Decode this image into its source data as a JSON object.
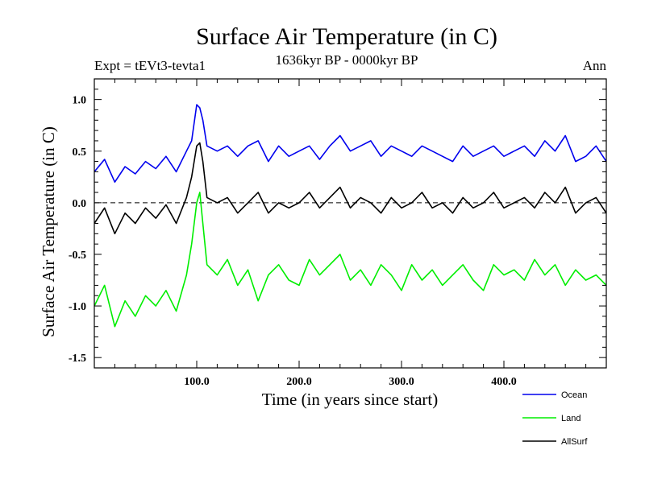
{
  "chart_data": {
    "type": "line",
    "title": "Surface Air Temperature (in C)",
    "subtitle_left": "Expt = tEVt3-tevta1",
    "subtitle_center": "1636kyr BP - 0000kyr BP",
    "subtitle_right": "Ann",
    "xlabel": "Time (in years since start)",
    "ylabel": "Surface Air Temperature (in C)",
    "xlim": [
      0,
      500
    ],
    "ylim": [
      -1.6,
      1.2
    ],
    "xticks": [
      100,
      200,
      300,
      400
    ],
    "xtick_labels": [
      "100.0",
      "200.0",
      "300.0",
      "400.0"
    ],
    "yticks": [
      1.0,
      0.5,
      0.0,
      -0.5,
      -1.0,
      -1.5
    ],
    "ytick_labels": [
      "1.0",
      "0.5",
      "0.0",
      "-0.5",
      "-1.0",
      "-1.5"
    ],
    "reference_line": 0.0,
    "legend_position": "bottom-right",
    "series": [
      {
        "name": "Ocean",
        "color": "#0000ee",
        "x": [
          0,
          10,
          20,
          30,
          40,
          50,
          60,
          70,
          80,
          90,
          95,
          100,
          103,
          106,
          110,
          120,
          130,
          140,
          150,
          160,
          170,
          180,
          190,
          200,
          210,
          220,
          230,
          240,
          250,
          260,
          270,
          280,
          290,
          300,
          310,
          320,
          330,
          340,
          350,
          360,
          370,
          380,
          390,
          400,
          410,
          420,
          430,
          440,
          450,
          460,
          470,
          480,
          490,
          500
        ],
        "values": [
          0.3,
          0.42,
          0.2,
          0.35,
          0.28,
          0.4,
          0.33,
          0.45,
          0.3,
          0.5,
          0.6,
          0.95,
          0.92,
          0.8,
          0.55,
          0.5,
          0.55,
          0.45,
          0.55,
          0.6,
          0.4,
          0.55,
          0.45,
          0.5,
          0.55,
          0.42,
          0.55,
          0.65,
          0.5,
          0.55,
          0.6,
          0.45,
          0.55,
          0.5,
          0.45,
          0.55,
          0.5,
          0.45,
          0.4,
          0.55,
          0.45,
          0.5,
          0.55,
          0.45,
          0.5,
          0.55,
          0.45,
          0.6,
          0.5,
          0.65,
          0.4,
          0.45,
          0.55,
          0.4
        ]
      },
      {
        "name": "Land",
        "color": "#00ee00",
        "x": [
          0,
          10,
          20,
          30,
          40,
          50,
          60,
          70,
          80,
          90,
          95,
          100,
          103,
          106,
          110,
          120,
          130,
          140,
          150,
          160,
          170,
          180,
          190,
          200,
          210,
          220,
          230,
          240,
          250,
          260,
          270,
          280,
          290,
          300,
          310,
          320,
          330,
          340,
          350,
          360,
          370,
          380,
          390,
          400,
          410,
          420,
          430,
          440,
          450,
          460,
          470,
          480,
          490,
          500
        ],
        "values": [
          -1.0,
          -0.8,
          -1.2,
          -0.95,
          -1.1,
          -0.9,
          -1.0,
          -0.85,
          -1.05,
          -0.7,
          -0.4,
          0.0,
          0.1,
          -0.2,
          -0.6,
          -0.7,
          -0.55,
          -0.8,
          -0.65,
          -0.95,
          -0.7,
          -0.6,
          -0.75,
          -0.8,
          -0.55,
          -0.7,
          -0.6,
          -0.5,
          -0.75,
          -0.65,
          -0.8,
          -0.6,
          -0.7,
          -0.85,
          -0.6,
          -0.75,
          -0.65,
          -0.8,
          -0.7,
          -0.6,
          -0.75,
          -0.85,
          -0.6,
          -0.7,
          -0.65,
          -0.75,
          -0.55,
          -0.7,
          -0.6,
          -0.8,
          -0.65,
          -0.75,
          -0.7,
          -0.8
        ]
      },
      {
        "name": "AllSurf",
        "color": "#000000",
        "x": [
          0,
          10,
          20,
          30,
          40,
          50,
          60,
          70,
          80,
          90,
          95,
          100,
          103,
          106,
          110,
          120,
          130,
          140,
          150,
          160,
          170,
          180,
          190,
          200,
          210,
          220,
          230,
          240,
          250,
          260,
          270,
          280,
          290,
          300,
          310,
          320,
          330,
          340,
          350,
          360,
          370,
          380,
          390,
          400,
          410,
          420,
          430,
          440,
          450,
          460,
          470,
          480,
          490,
          500
        ],
        "values": [
          -0.2,
          -0.05,
          -0.3,
          -0.1,
          -0.2,
          -0.05,
          -0.15,
          -0.02,
          -0.2,
          0.05,
          0.25,
          0.55,
          0.58,
          0.4,
          0.05,
          0.0,
          0.05,
          -0.1,
          0.0,
          0.1,
          -0.1,
          0.0,
          -0.05,
          0.0,
          0.1,
          -0.05,
          0.05,
          0.15,
          -0.05,
          0.05,
          0.0,
          -0.1,
          0.05,
          -0.05,
          0.0,
          0.1,
          -0.05,
          0.0,
          -0.1,
          0.05,
          -0.05,
          0.0,
          0.1,
          -0.05,
          0.0,
          0.05,
          -0.05,
          0.1,
          0.0,
          0.15,
          -0.1,
          0.0,
          0.05,
          -0.1
        ]
      }
    ]
  }
}
